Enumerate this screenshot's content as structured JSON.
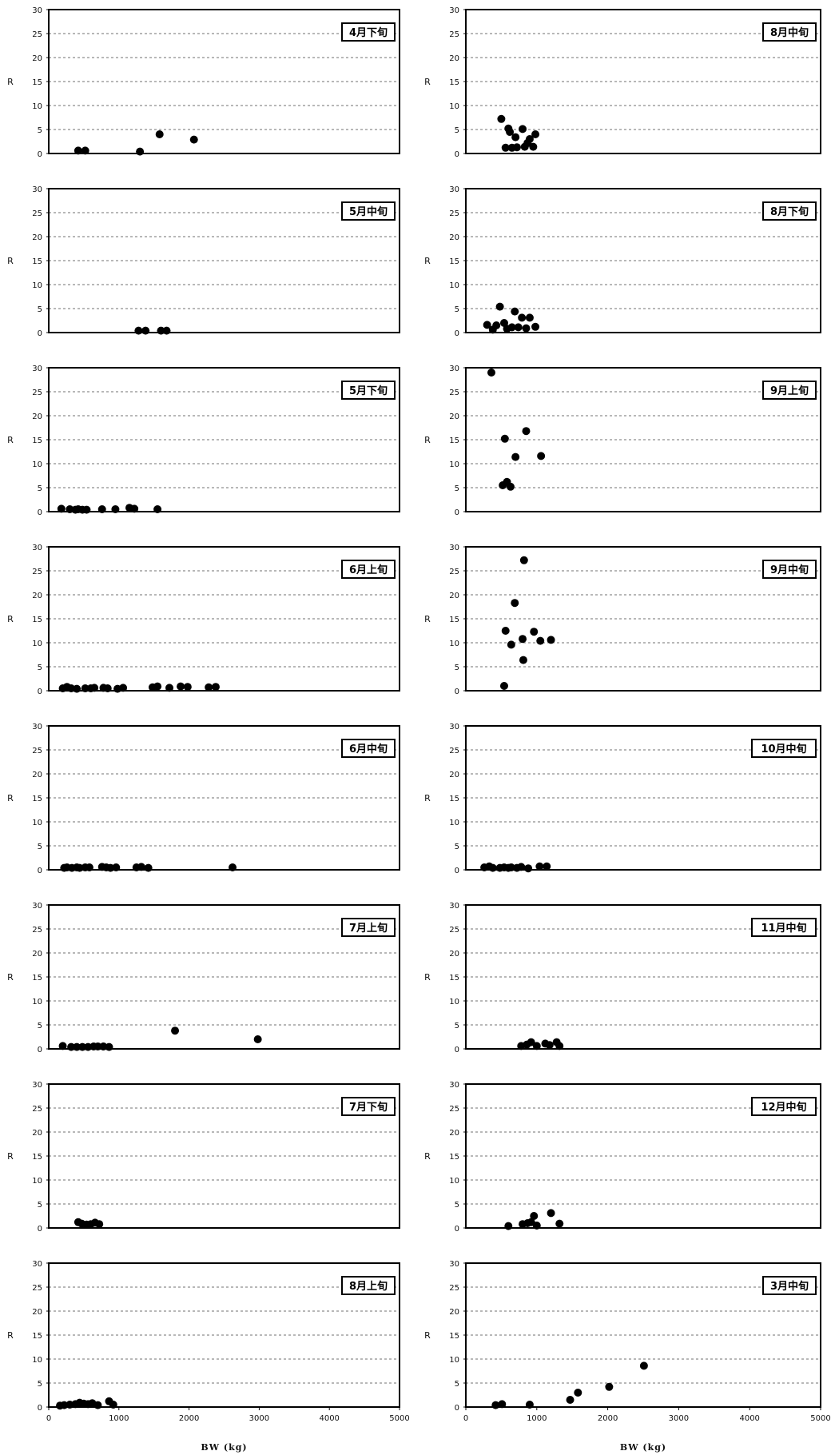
{
  "chart_data": [
    {
      "type": "scatter",
      "title": "4月下旬",
      "ylabel": "R",
      "xlim": [
        0,
        5000
      ],
      "ylim": [
        0,
        30
      ],
      "y_ticks": [
        0,
        5,
        10,
        15,
        20,
        25,
        30
      ],
      "grid": "horizontal-dashed",
      "points": [
        [
          420,
          0.6
        ],
        [
          520,
          0.6
        ],
        [
          1300,
          0.4
        ],
        [
          1580,
          4.0
        ],
        [
          2070,
          2.9
        ]
      ]
    },
    {
      "type": "scatter",
      "title": "8月中旬",
      "ylabel": "R",
      "xlim": [
        0,
        5000
      ],
      "ylim": [
        0,
        30
      ],
      "y_ticks": [
        0,
        5,
        10,
        15,
        20,
        25,
        30
      ],
      "grid": "horizontal-dashed",
      "points": [
        [
          500,
          7.2
        ],
        [
          560,
          1.2
        ],
        [
          600,
          5.2
        ],
        [
          620,
          4.5
        ],
        [
          650,
          1.2
        ],
        [
          700,
          3.4
        ],
        [
          720,
          1.3
        ],
        [
          800,
          5.1
        ],
        [
          830,
          1.4
        ],
        [
          870,
          2.2
        ],
        [
          900,
          3.0
        ],
        [
          950,
          1.4
        ],
        [
          980,
          4.0
        ]
      ]
    },
    {
      "type": "scatter",
      "title": "5月中旬",
      "ylabel": "R",
      "xlim": [
        0,
        5000
      ],
      "ylim": [
        0,
        30
      ],
      "y_ticks": [
        0,
        5,
        10,
        15,
        20,
        25,
        30
      ],
      "grid": "horizontal-dashed",
      "points": [
        [
          1280,
          0.4
        ],
        [
          1380,
          0.4
        ],
        [
          1600,
          0.4
        ],
        [
          1680,
          0.4
        ]
      ]
    },
    {
      "type": "scatter",
      "title": "8月下旬",
      "ylabel": "R",
      "xlim": [
        0,
        5000
      ],
      "ylim": [
        0,
        30
      ],
      "y_ticks": [
        0,
        5,
        10,
        15,
        20,
        25,
        30
      ],
      "grid": "horizontal-dashed",
      "points": [
        [
          300,
          1.6
        ],
        [
          380,
          0.6
        ],
        [
          430,
          1.5
        ],
        [
          480,
          5.4
        ],
        [
          540,
          2.0
        ],
        [
          580,
          0.8
        ],
        [
          650,
          1.1
        ],
        [
          690,
          4.4
        ],
        [
          740,
          1.1
        ],
        [
          790,
          3.1
        ],
        [
          850,
          0.9
        ],
        [
          900,
          3.1
        ],
        [
          980,
          1.2
        ]
      ]
    },
    {
      "type": "scatter",
      "title": "5月下旬",
      "ylabel": "R",
      "xlim": [
        0,
        5000
      ],
      "ylim": [
        0,
        30
      ],
      "y_ticks": [
        0,
        5,
        10,
        15,
        20,
        25,
        30
      ],
      "grid": "horizontal-dashed",
      "points": [
        [
          180,
          0.6
        ],
        [
          300,
          0.5
        ],
        [
          380,
          0.4
        ],
        [
          420,
          0.5
        ],
        [
          480,
          0.4
        ],
        [
          540,
          0.4
        ],
        [
          760,
          0.5
        ],
        [
          950,
          0.5
        ],
        [
          1150,
          0.8
        ],
        [
          1220,
          0.6
        ],
        [
          1550,
          0.5
        ]
      ]
    },
    {
      "type": "scatter",
      "title": "9月上旬",
      "ylabel": "R",
      "xlim": [
        0,
        5000
      ],
      "ylim": [
        0,
        30
      ],
      "y_ticks": [
        0,
        5,
        10,
        15,
        20,
        25,
        30
      ],
      "grid": "horizontal-dashed",
      "points": [
        [
          360,
          29.0
        ],
        [
          520,
          5.5
        ],
        [
          550,
          15.2
        ],
        [
          580,
          6.2
        ],
        [
          630,
          5.2
        ],
        [
          700,
          11.4
        ],
        [
          850,
          16.8
        ],
        [
          1060,
          11.6
        ]
      ]
    },
    {
      "type": "scatter",
      "title": "6月上旬",
      "ylabel": "R",
      "xlim": [
        0,
        5000
      ],
      "ylim": [
        0,
        30
      ],
      "y_ticks": [
        0,
        5,
        10,
        15,
        20,
        25,
        30
      ],
      "grid": "horizontal-dashed",
      "points": [
        [
          200,
          0.5
        ],
        [
          260,
          0.8
        ],
        [
          320,
          0.5
        ],
        [
          400,
          0.4
        ],
        [
          520,
          0.5
        ],
        [
          600,
          0.5
        ],
        [
          650,
          0.6
        ],
        [
          780,
          0.6
        ],
        [
          840,
          0.5
        ],
        [
          980,
          0.4
        ],
        [
          1060,
          0.6
        ],
        [
          1480,
          0.7
        ],
        [
          1550,
          0.9
        ],
        [
          1720,
          0.6
        ],
        [
          1880,
          0.9
        ],
        [
          1980,
          0.8
        ],
        [
          2280,
          0.7
        ],
        [
          2380,
          0.8
        ]
      ]
    },
    {
      "type": "scatter",
      "title": "9月中旬",
      "ylabel": "R",
      "xlim": [
        0,
        5000
      ],
      "ylim": [
        0,
        30
      ],
      "y_ticks": [
        0,
        5,
        10,
        15,
        20,
        25,
        30
      ],
      "grid": "horizontal-dashed",
      "points": [
        [
          540,
          1.0
        ],
        [
          560,
          12.5
        ],
        [
          640,
          9.6
        ],
        [
          690,
          18.3
        ],
        [
          800,
          10.8
        ],
        [
          810,
          6.4
        ],
        [
          820,
          27.2
        ],
        [
          960,
          12.3
        ],
        [
          1050,
          10.4
        ],
        [
          1200,
          10.6
        ]
      ]
    },
    {
      "type": "scatter",
      "title": "6月中旬",
      "ylabel": "R",
      "xlim": [
        0,
        5000
      ],
      "ylim": [
        0,
        30
      ],
      "y_ticks": [
        0,
        5,
        10,
        15,
        20,
        25,
        30
      ],
      "grid": "horizontal-dashed",
      "points": [
        [
          220,
          0.4
        ],
        [
          260,
          0.5
        ],
        [
          330,
          0.4
        ],
        [
          400,
          0.5
        ],
        [
          440,
          0.4
        ],
        [
          520,
          0.5
        ],
        [
          580,
          0.5
        ],
        [
          760,
          0.6
        ],
        [
          820,
          0.5
        ],
        [
          880,
          0.4
        ],
        [
          960,
          0.5
        ],
        [
          1250,
          0.5
        ],
        [
          1320,
          0.6
        ],
        [
          1420,
          0.4
        ],
        [
          2620,
          0.5
        ]
      ]
    },
    {
      "type": "scatter",
      "title": "10月中旬",
      "ylabel": "R",
      "xlim": [
        0,
        5000
      ],
      "ylim": [
        0,
        30
      ],
      "y_ticks": [
        0,
        5,
        10,
        15,
        20,
        25,
        30
      ],
      "grid": "horizontal-dashed",
      "points": [
        [
          260,
          0.5
        ],
        [
          330,
          0.7
        ],
        [
          380,
          0.4
        ],
        [
          480,
          0.4
        ],
        [
          540,
          0.5
        ],
        [
          600,
          0.4
        ],
        [
          640,
          0.5
        ],
        [
          720,
          0.4
        ],
        [
          780,
          0.6
        ],
        [
          880,
          0.3
        ],
        [
          1040,
          0.7
        ],
        [
          1140,
          0.7
        ]
      ]
    },
    {
      "type": "scatter",
      "title": "7月上旬",
      "ylabel": "R",
      "xlim": [
        0,
        5000
      ],
      "ylim": [
        0,
        30
      ],
      "y_ticks": [
        0,
        5,
        10,
        15,
        20,
        25,
        30
      ],
      "grid": "horizontal-dashed",
      "points": [
        [
          200,
          0.6
        ],
        [
          320,
          0.4
        ],
        [
          400,
          0.4
        ],
        [
          480,
          0.4
        ],
        [
          560,
          0.4
        ],
        [
          640,
          0.5
        ],
        [
          700,
          0.5
        ],
        [
          780,
          0.5
        ],
        [
          860,
          0.4
        ],
        [
          1800,
          3.8
        ],
        [
          2980,
          2.0
        ]
      ]
    },
    {
      "type": "scatter",
      "title": "11月中旬",
      "ylabel": "R",
      "xlim": [
        0,
        5000
      ],
      "ylim": [
        0,
        30
      ],
      "y_ticks": [
        0,
        5,
        10,
        15,
        20,
        25,
        30
      ],
      "grid": "horizontal-dashed",
      "points": [
        [
          780,
          0.6
        ],
        [
          860,
          0.9
        ],
        [
          920,
          1.4
        ],
        [
          1000,
          0.6
        ],
        [
          1120,
          1.1
        ],
        [
          1180,
          0.8
        ],
        [
          1280,
          1.4
        ],
        [
          1320,
          0.6
        ]
      ]
    },
    {
      "type": "scatter",
      "title": "7月下旬",
      "ylabel": "R",
      "xlim": [
        0,
        5000
      ],
      "ylim": [
        0,
        30
      ],
      "y_ticks": [
        0,
        5,
        10,
        15,
        20,
        25,
        30
      ],
      "grid": "horizontal-dashed",
      "points": [
        [
          420,
          1.2
        ],
        [
          470,
          0.9
        ],
        [
          540,
          0.7
        ],
        [
          600,
          0.8
        ],
        [
          660,
          1.1
        ],
        [
          720,
          0.8
        ]
      ]
    },
    {
      "type": "scatter",
      "title": "12月中旬",
      "ylabel": "R",
      "xlim": [
        0,
        5000
      ],
      "ylim": [
        0,
        30
      ],
      "y_ticks": [
        0,
        5,
        10,
        15,
        20,
        25,
        30
      ],
      "grid": "horizontal-dashed",
      "points": [
        [
          600,
          0.4
        ],
        [
          800,
          0.8
        ],
        [
          870,
          1.0
        ],
        [
          920,
          1.2
        ],
        [
          960,
          2.5
        ],
        [
          1000,
          0.5
        ],
        [
          1200,
          3.1
        ],
        [
          1320,
          0.9
        ]
      ]
    },
    {
      "type": "scatter",
      "title": "8月上旬",
      "ylabel": "R",
      "xlim": [
        0,
        5000
      ],
      "ylim": [
        0,
        30
      ],
      "y_ticks": [
        0,
        5,
        10,
        15,
        20,
        25,
        30
      ],
      "grid": "horizontal-dashed",
      "points": [
        [
          160,
          0.3
        ],
        [
          220,
          0.4
        ],
        [
          300,
          0.5
        ],
        [
          380,
          0.6
        ],
        [
          440,
          0.9
        ],
        [
          500,
          0.7
        ],
        [
          560,
          0.6
        ],
        [
          620,
          0.8
        ],
        [
          700,
          0.4
        ],
        [
          860,
          1.2
        ],
        [
          920,
          0.5
        ]
      ],
      "x_ticks": [
        0,
        1000,
        2000,
        3000,
        4000,
        5000
      ],
      "xlabel": "BW (kg)"
    },
    {
      "type": "scatter",
      "title": "3月中旬",
      "ylabel": "R",
      "xlim": [
        0,
        5000
      ],
      "ylim": [
        0,
        30
      ],
      "y_ticks": [
        0,
        5,
        10,
        15,
        20,
        25,
        30
      ],
      "grid": "horizontal-dashed",
      "points": [
        [
          420,
          0.4
        ],
        [
          510,
          0.6
        ],
        [
          900,
          0.5
        ],
        [
          1470,
          1.5
        ],
        [
          1580,
          3.0
        ],
        [
          2020,
          4.2
        ],
        [
          2510,
          8.6
        ]
      ],
      "x_ticks": [
        0,
        1000,
        2000,
        3000,
        4000,
        5000
      ],
      "xlabel": "BW (kg)"
    }
  ]
}
